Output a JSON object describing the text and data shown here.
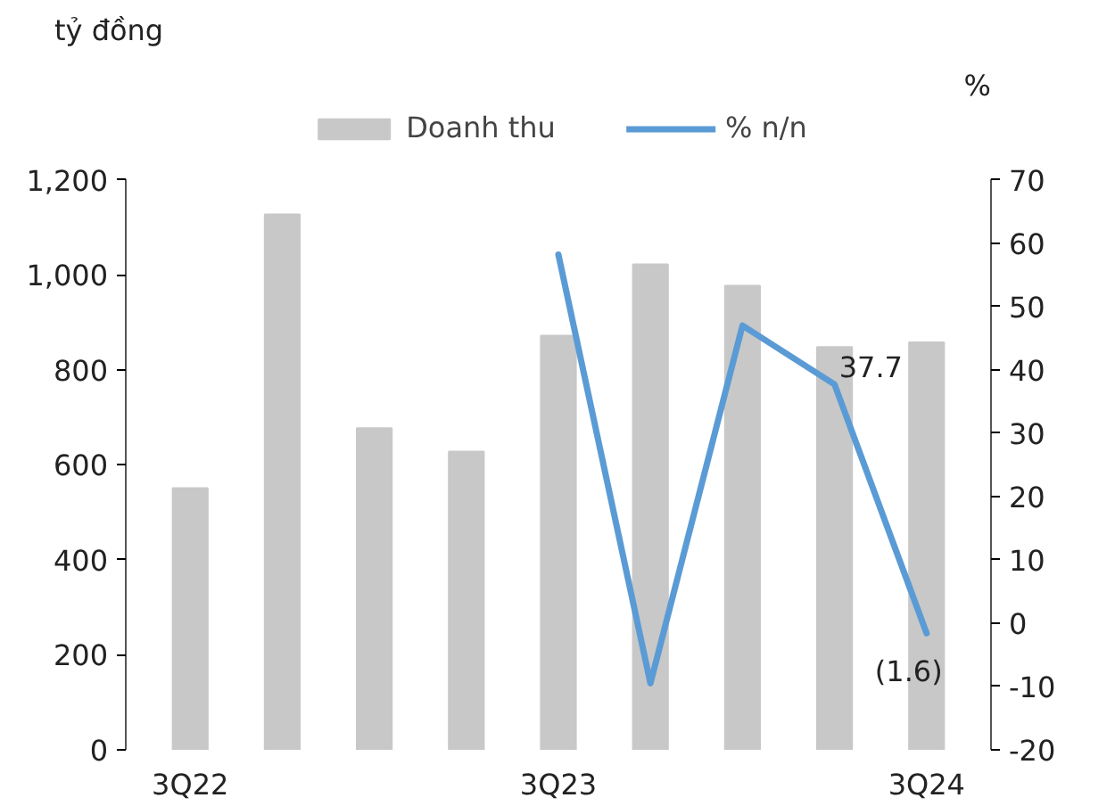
{
  "chart_data": {
    "type": "bar",
    "ylabel": "tỷ đồng",
    "y2label": "%",
    "categories": [
      "3Q22",
      null,
      null,
      null,
      "3Q23",
      null,
      null,
      null,
      "3Q24"
    ],
    "series": [
      {
        "name": "Doanh thu",
        "color": "#c8c8c8",
        "values": [
          551,
          1127,
          677,
          628,
          872,
          1022,
          977,
          848,
          858
        ]
      },
      {
        "name": "% n/n",
        "type": "line",
        "axis": "y2",
        "color": "#5b9bd5",
        "values": [
          null,
          null,
          null,
          null,
          58.2,
          -9.5,
          47,
          37.7,
          -1.6
        ],
        "value_labels": [
          null,
          null,
          null,
          null,
          null,
          null,
          null,
          "37.7",
          "(1.6)"
        ]
      }
    ],
    "ylim": [
      0,
      1200
    ],
    "yticks": [
      0,
      200,
      400,
      600,
      800,
      {
        "value": 1000,
        "label": "1,000"
      },
      {
        "value": 1200,
        "label": "1,200"
      }
    ],
    "y2lim": [
      -20,
      70
    ],
    "y2ticks": [
      -20,
      -10,
      0,
      10,
      20,
      30,
      40,
      50,
      60,
      70
    ],
    "grid": false,
    "legend": "top"
  }
}
